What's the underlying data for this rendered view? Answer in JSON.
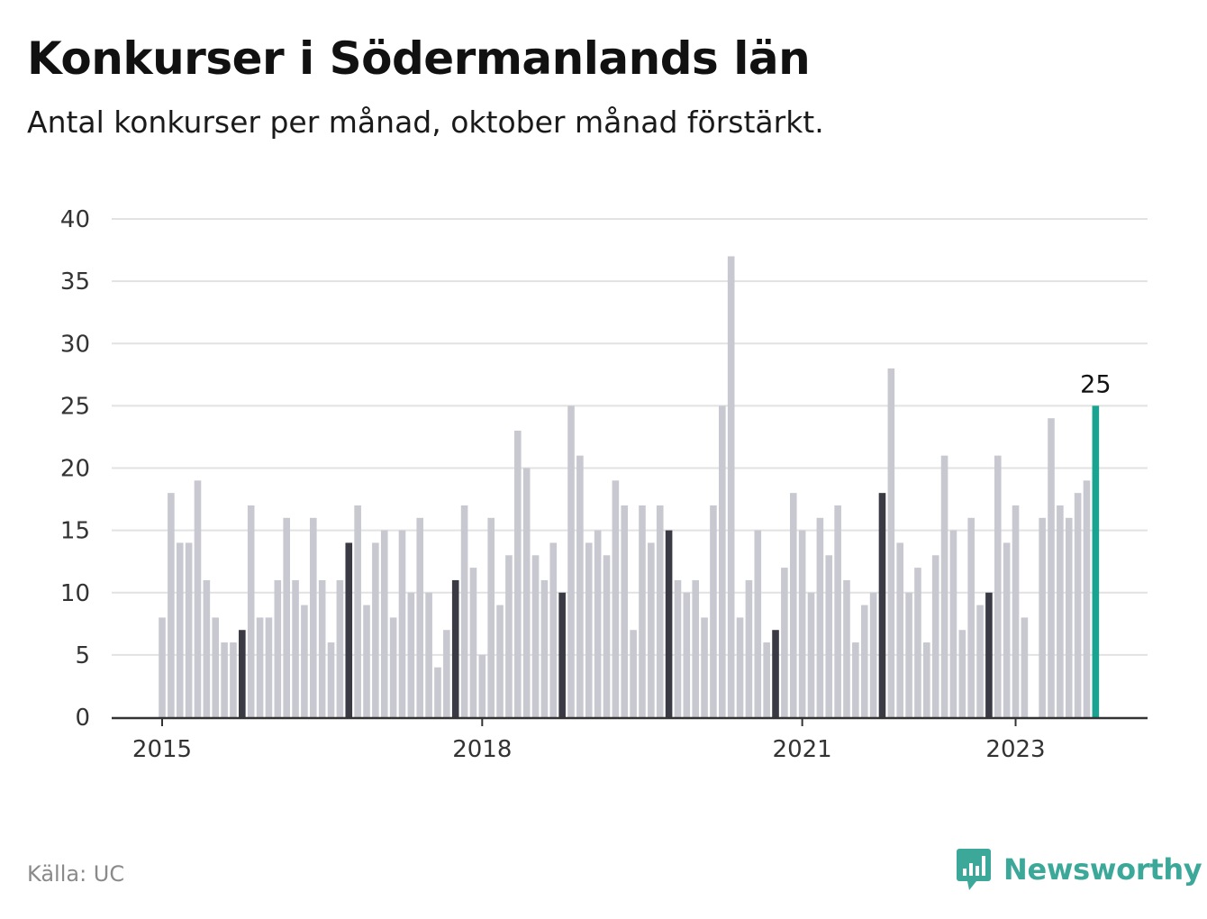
{
  "header": {
    "title": "Konkurser i Södermanlands län",
    "subtitle": "Antal konkurser per månad, oktober månad förstärkt."
  },
  "footer": {
    "source": "Källa: UC",
    "brand": "Newsworthy"
  },
  "colors": {
    "bar": "#c8c8d0",
    "october": "#3a3a45",
    "latest": "#1aa391",
    "grid": "#e2e2e2",
    "axis": "#333333",
    "brand": "#3ba89a"
  },
  "chart_data": {
    "type": "bar",
    "title": "Konkurser i Södermanlands län",
    "subtitle": "Antal konkurser per månad, oktober månad förstärkt.",
    "xlabel": "",
    "ylabel": "",
    "ylim": [
      0,
      40
    ],
    "yticks": [
      0,
      5,
      10,
      15,
      20,
      25,
      30,
      35,
      40
    ],
    "xticks": [
      {
        "label": "2015",
        "month_index": 0
      },
      {
        "label": "2018",
        "month_index": 36
      },
      {
        "label": "2021",
        "month_index": 72
      },
      {
        "label": "2023",
        "month_index": 96
      }
    ],
    "start": "2015-01",
    "highlight": "October bars darker; last bar highlighted",
    "last_label": "25",
    "grid": true,
    "values": [
      8,
      18,
      14,
      14,
      19,
      11,
      8,
      6,
      6,
      7,
      17,
      8,
      8,
      11,
      16,
      11,
      9,
      16,
      11,
      6,
      11,
      14,
      17,
      9,
      14,
      15,
      8,
      15,
      10,
      16,
      10,
      4,
      7,
      11,
      17,
      12,
      5,
      16,
      9,
      13,
      23,
      20,
      13,
      11,
      14,
      10,
      25,
      21,
      14,
      15,
      13,
      19,
      17,
      7,
      17,
      14,
      17,
      15,
      11,
      10,
      11,
      8,
      17,
      25,
      37,
      8,
      11,
      15,
      6,
      7,
      12,
      18,
      15,
      10,
      16,
      13,
      17,
      11,
      6,
      9,
      10,
      18,
      28,
      14,
      10,
      12,
      6,
      13,
      21,
      15,
      7,
      16,
      9,
      10,
      21,
      14,
      17,
      8,
      0,
      16,
      24,
      17,
      16,
      18,
      19,
      25
    ]
  }
}
